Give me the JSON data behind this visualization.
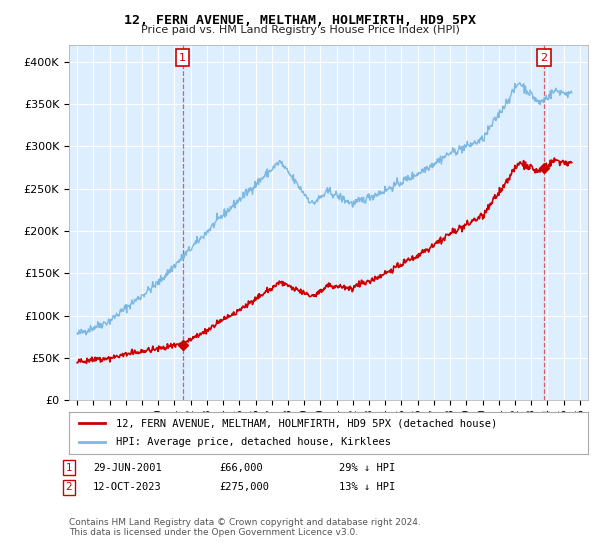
{
  "title": "12, FERN AVENUE, MELTHAM, HOLMFIRTH, HD9 5PX",
  "subtitle": "Price paid vs. HM Land Registry's House Price Index (HPI)",
  "hpi_color": "#7cb8e0",
  "price_color": "#cc0000",
  "bg_color": "#ffffff",
  "plot_bg_color": "#ddeeff",
  "grid_color": "#ffffff",
  "legend_label_price": "12, FERN AVENUE, MELTHAM, HOLMFIRTH, HD9 5PX (detached house)",
  "legend_label_hpi": "HPI: Average price, detached house, Kirklees",
  "annotation1_date": "29-JUN-2001",
  "annotation1_price": "£66,000",
  "annotation1_pct": "29% ↓ HPI",
  "annotation2_date": "12-OCT-2023",
  "annotation2_price": "£275,000",
  "annotation2_pct": "13% ↓ HPI",
  "footnote": "Contains HM Land Registry data © Crown copyright and database right 2024.\nThis data is licensed under the Open Government Licence v3.0.",
  "sale1_x": 2001.5,
  "sale1_y": 66000,
  "sale2_x": 2023.79,
  "sale2_y": 275000,
  "vline1_x": 2001.5,
  "vline2_x": 2023.79,
  "xmin": 1994.5,
  "xmax": 2026.5,
  "ylim": [
    0,
    420000
  ],
  "yticks": [
    0,
    50000,
    100000,
    150000,
    200000,
    250000,
    300000,
    350000,
    400000
  ]
}
